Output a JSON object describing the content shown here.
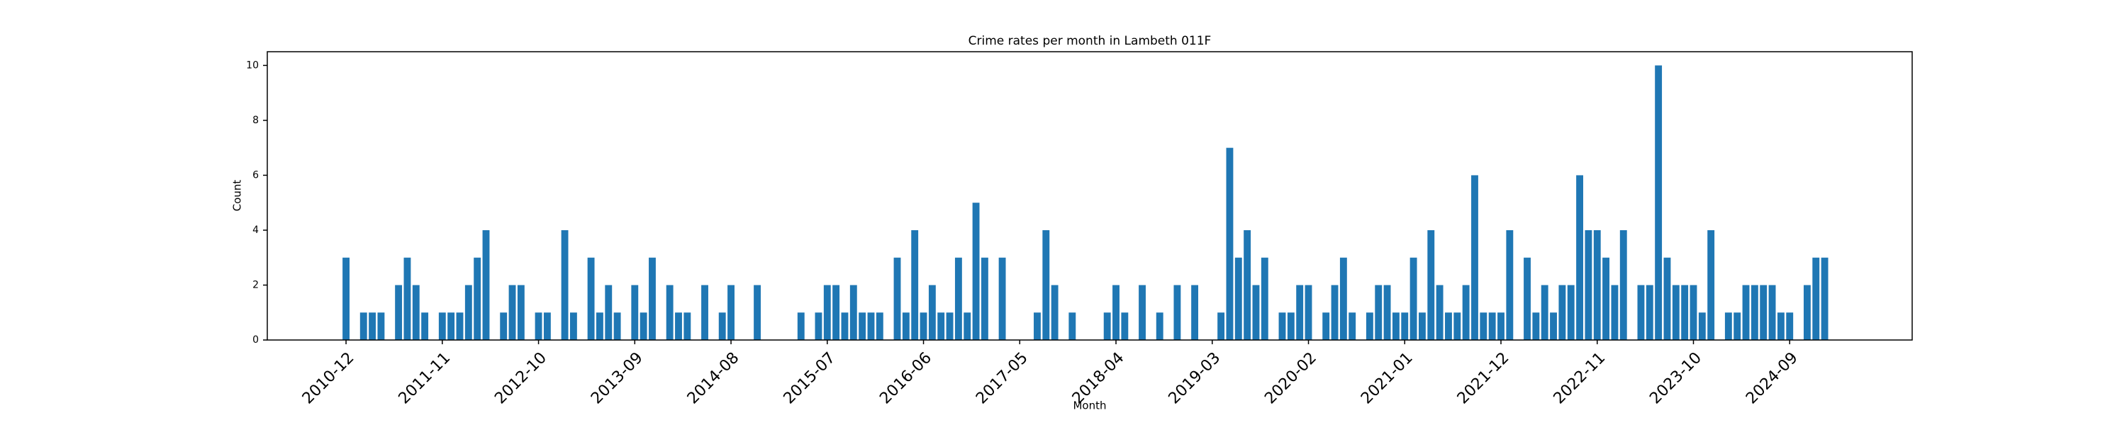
{
  "chart_data": {
    "type": "bar",
    "title": "Crime rates per month in Lambeth 011F",
    "x_label": "Month",
    "y_label": "Count",
    "color": "#1f77b4",
    "x": [
      "2010-12",
      "2011-02",
      "2011-03",
      "2011-04",
      "2011-06",
      "2011-07",
      "2011-08",
      "2011-09",
      "2011-11",
      "2011-12",
      "2012-01",
      "2012-02",
      "2012-03",
      "2012-04",
      "2012-06",
      "2012-07",
      "2012-08",
      "2012-10",
      "2012-11",
      "2013-01",
      "2013-02",
      "2013-04",
      "2013-05",
      "2013-06",
      "2013-07",
      "2013-09",
      "2013-10",
      "2013-11",
      "2014-01",
      "2014-02",
      "2014-03",
      "2014-05",
      "2014-07",
      "2014-08",
      "2014-11",
      "2015-04",
      "2015-06",
      "2015-07",
      "2015-08",
      "2015-09",
      "2015-10",
      "2015-11",
      "2015-12",
      "2016-01",
      "2016-03",
      "2016-04",
      "2016-05",
      "2016-06",
      "2016-07",
      "2016-08",
      "2016-09",
      "2016-10",
      "2016-11",
      "2016-12",
      "2017-01",
      "2017-03",
      "2017-07",
      "2017-08",
      "2017-09",
      "2017-11",
      "2018-03",
      "2018-04",
      "2018-05",
      "2018-07",
      "2018-09",
      "2018-11",
      "2019-01",
      "2019-04",
      "2019-05",
      "2019-06",
      "2019-07",
      "2019-08",
      "2019-09",
      "2019-11",
      "2019-12",
      "2020-01",
      "2020-02",
      "2020-04",
      "2020-05",
      "2020-06",
      "2020-07",
      "2020-09",
      "2020-10",
      "2020-11",
      "2020-12",
      "2021-01",
      "2021-02",
      "2021-03",
      "2021-04",
      "2021-05",
      "2021-06",
      "2021-07",
      "2021-08",
      "2021-09",
      "2021-10",
      "2021-11",
      "2021-12",
      "2022-01",
      "2022-03",
      "2022-04",
      "2022-05",
      "2022-06",
      "2022-07",
      "2022-08",
      "2022-09",
      "2022-10",
      "2022-11",
      "2022-12",
      "2023-01",
      "2023-02",
      "2023-04",
      "2023-05",
      "2023-06",
      "2023-07",
      "2023-08",
      "2023-09",
      "2023-10",
      "2023-11",
      "2023-12",
      "2024-02",
      "2024-03",
      "2024-04",
      "2024-05",
      "2024-06",
      "2024-07",
      "2024-08",
      "2024-09",
      "2024-11",
      "2024-12",
      "2025-01"
    ],
    "values": [
      3,
      1,
      1,
      1,
      2,
      3,
      2,
      1,
      1,
      1,
      1,
      2,
      3,
      4,
      1,
      2,
      2,
      1,
      1,
      4,
      1,
      3,
      1,
      2,
      1,
      2,
      1,
      3,
      2,
      1,
      1,
      2,
      1,
      2,
      2,
      1,
      1,
      2,
      2,
      1,
      2,
      1,
      1,
      1,
      3,
      1,
      4,
      1,
      2,
      1,
      1,
      3,
      1,
      5,
      3,
      3,
      1,
      4,
      2,
      1,
      1,
      2,
      1,
      2,
      1,
      2,
      2,
      1,
      7,
      3,
      4,
      2,
      3,
      1,
      1,
      2,
      2,
      1,
      2,
      3,
      1,
      1,
      2,
      2,
      1,
      1,
      3,
      1,
      4,
      2,
      1,
      1,
      2,
      6,
      1,
      1,
      1,
      4,
      3,
      1,
      2,
      1,
      2,
      2,
      6,
      4,
      4,
      3,
      2,
      4,
      2,
      2,
      10,
      3,
      2,
      2,
      2,
      1,
      4,
      1,
      1,
      2,
      2,
      2,
      2,
      1,
      1,
      2,
      3,
      3
    ],
    "xlim": [
      "2010-03",
      "2025-11"
    ],
    "xticks": [
      "2010-12",
      "2011-11",
      "2012-10",
      "2013-09",
      "2014-08",
      "2015-07",
      "2016-06",
      "2017-05",
      "2018-04",
      "2019-03",
      "2020-02",
      "2021-01",
      "2021-12",
      "2022-11",
      "2023-10",
      "2024-09"
    ],
    "ylim": [
      0,
      10.5
    ],
    "yticks": [
      0,
      2,
      4,
      6,
      8,
      10
    ]
  }
}
